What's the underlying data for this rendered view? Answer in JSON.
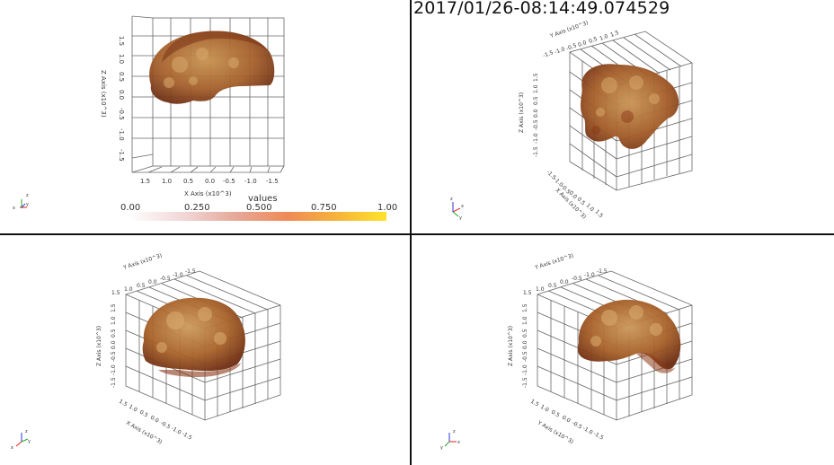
{
  "timestamp": "2017/01/26-08:14:49.074529",
  "colorbar": {
    "title": "values",
    "ticks": [
      "0.00",
      "0.250",
      "0.500",
      "0.750",
      "1.00"
    ]
  },
  "views": [
    {
      "id": "top-left",
      "axis_labels": [
        "X Axis (x10^3)",
        "Z Axis (x10^3)"
      ],
      "x_ticks": [
        "1.5",
        "1.0",
        "0.5",
        "0.0",
        "-0.5",
        "-1.0",
        "-1.5"
      ],
      "z_ticks": [
        "1.5",
        "1.0",
        "0.5",
        "0.0",
        "-0.5",
        "-1.0",
        "-1.5"
      ]
    },
    {
      "id": "top-right",
      "axis_labels": [
        "Y Axis (x10^3)",
        "Z Axis (x10^3)",
        "X Axis (x10^3)"
      ],
      "y_ticks": [
        "-1.5",
        "-1.0",
        "-0.5",
        "0.0",
        "0.5",
        "1.0",
        "1.5"
      ],
      "z_ticks": [
        "-1.5",
        "-1.0",
        "-0.5",
        "0.0",
        "0.5",
        "1.0",
        "1.5"
      ],
      "x_ticks": [
        "-1.5",
        "-1.0",
        "-0.5",
        "0.0",
        "0.5",
        "1.0",
        "1.5"
      ]
    },
    {
      "id": "bottom-left",
      "axis_labels": [
        "Y Axis (x10^3)",
        "Z Axis (x10^3)",
        "X Axis (x10^3)"
      ],
      "y_ticks": [
        "1.5",
        "1.0",
        "0.5",
        "0.0",
        "-0.5",
        "-1.0",
        "-1.5"
      ],
      "z_ticks": [
        "-1.5",
        "-1.0",
        "-0.5",
        "0.0",
        "0.5",
        "1.0",
        "1.5"
      ],
      "x_ticks": [
        "1.5",
        "1.0",
        "0.5",
        "0.0",
        "-0.5",
        "-1.0",
        "-1.5"
      ]
    },
    {
      "id": "bottom-right",
      "axis_labels": [
        "Y Axis (x10^3)",
        "Z Axis (x10^3)",
        "Y Axis (x10^3)"
      ],
      "y_ticks": [
        "1.5",
        "1.0",
        "0.5",
        "0.0",
        "-0.5",
        "-1.0",
        "-1.5"
      ],
      "z_ticks": [
        "-1.5",
        "-1.0",
        "-0.5",
        "0.0",
        "0.5",
        "1.0",
        "1.5"
      ],
      "x_ticks": [
        "1.5",
        "1.0",
        "0.5",
        "0.0",
        "-0.5",
        "-1.0",
        "-1.5"
      ]
    }
  ],
  "orientation_axes": [
    "x",
    "y",
    "z"
  ],
  "colors": {
    "volume_dark": "#7a3d1c",
    "volume_mid": "#a8622c",
    "volume_light": "#c89a5a",
    "grid": "#555555",
    "divider": "#111111"
  }
}
